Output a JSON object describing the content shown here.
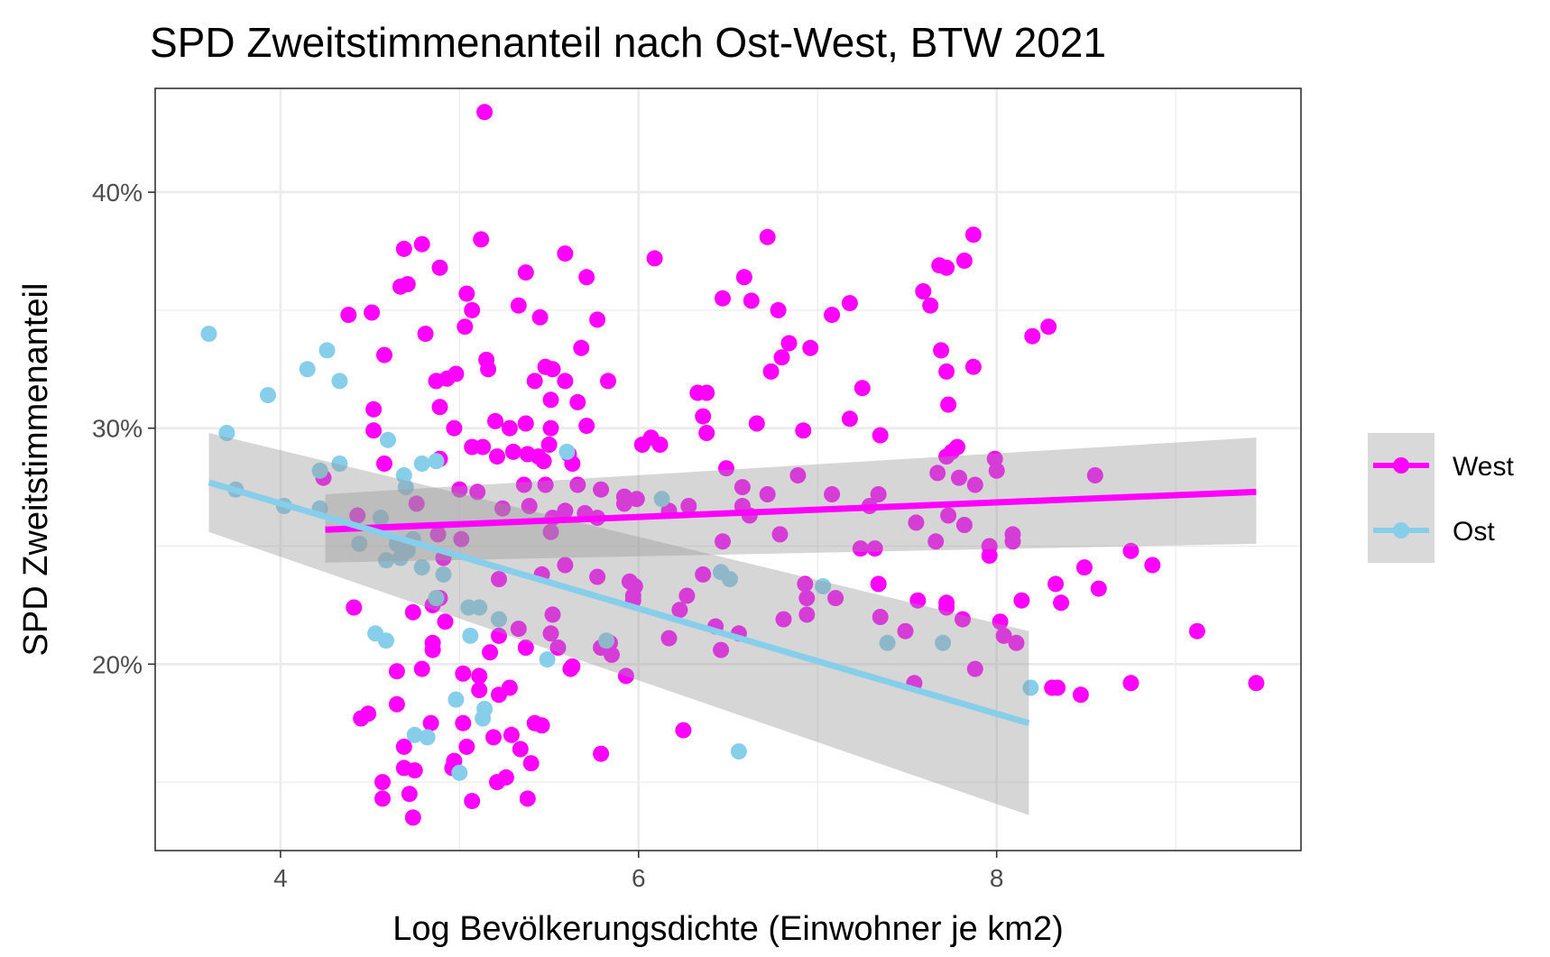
{
  "chart_data": {
    "type": "scatter",
    "title": "SPD Zweitstimmenanteil nach Ost-West, BTW 2021",
    "xlabel": "Log Bevölkerungsdichte (Einwohner je km2)",
    "ylabel": "SPD Zweitstimmenanteil",
    "xlim": [
      3.3,
      9.7
    ],
    "ylim": [
      0.121,
      0.444
    ],
    "x_ticks": [
      4,
      6,
      8
    ],
    "x_tick_labels": [
      "4",
      "6",
      "8"
    ],
    "y_ticks": [
      0.2,
      0.3,
      0.4
    ],
    "y_tick_labels": [
      "20%",
      "30%",
      "40%"
    ],
    "grid": true,
    "legend_position": "right",
    "series": [
      {
        "name": "West",
        "color": "#ff00ff",
        "trend": {
          "x": [
            4.25,
            9.45
          ],
          "y": [
            0.257,
            0.273
          ],
          "ci_low": [
            0.243,
            0.251
          ],
          "ci_high": [
            0.272,
            0.296
          ]
        },
        "points": [
          [
            5.14,
            0.434
          ],
          [
            4.69,
            0.376
          ],
          [
            4.79,
            0.378
          ],
          [
            5.12,
            0.38
          ],
          [
            5.59,
            0.374
          ],
          [
            6.09,
            0.372
          ],
          [
            6.72,
            0.381
          ],
          [
            7.87,
            0.382
          ],
          [
            4.67,
            0.36
          ],
          [
            4.71,
            0.361
          ],
          [
            4.89,
            0.368
          ],
          [
            5.37,
            0.366
          ],
          [
            5.71,
            0.364
          ],
          [
            6.59,
            0.364
          ],
          [
            7.68,
            0.369
          ],
          [
            7.72,
            0.368
          ],
          [
            7.82,
            0.371
          ],
          [
            4.38,
            0.348
          ],
          [
            4.51,
            0.349
          ],
          [
            5.04,
            0.357
          ],
          [
            5.07,
            0.35
          ],
          [
            5.33,
            0.352
          ],
          [
            5.45,
            0.347
          ],
          [
            5.77,
            0.346
          ],
          [
            6.47,
            0.355
          ],
          [
            6.63,
            0.354
          ],
          [
            6.78,
            0.35
          ],
          [
            7.08,
            0.348
          ],
          [
            7.18,
            0.353
          ],
          [
            7.59,
            0.358
          ],
          [
            7.63,
            0.352
          ],
          [
            4.58,
            0.331
          ],
          [
            4.81,
            0.34
          ],
          [
            5.03,
            0.343
          ],
          [
            5.15,
            0.329
          ],
          [
            5.16,
            0.325
          ],
          [
            5.48,
            0.326
          ],
          [
            5.52,
            0.325
          ],
          [
            5.68,
            0.334
          ],
          [
            6.74,
            0.324
          ],
          [
            6.8,
            0.33
          ],
          [
            6.84,
            0.336
          ],
          [
            6.96,
            0.334
          ],
          [
            7.69,
            0.333
          ],
          [
            7.72,
            0.324
          ],
          [
            7.87,
            0.326
          ],
          [
            8.2,
            0.339
          ],
          [
            8.29,
            0.343
          ],
          [
            4.52,
            0.308
          ],
          [
            4.87,
            0.32
          ],
          [
            4.93,
            0.321
          ],
          [
            4.98,
            0.323
          ],
          [
            5.42,
            0.32
          ],
          [
            5.51,
            0.312
          ],
          [
            5.59,
            0.32
          ],
          [
            5.66,
            0.311
          ],
          [
            5.83,
            0.32
          ],
          [
            6.33,
            0.315
          ],
          [
            6.38,
            0.315
          ],
          [
            7.25,
            0.317
          ],
          [
            7.73,
            0.31
          ],
          [
            4.52,
            0.299
          ],
          [
            4.89,
            0.309
          ],
          [
            4.97,
            0.3
          ],
          [
            5.2,
            0.303
          ],
          [
            5.28,
            0.3
          ],
          [
            5.37,
            0.302
          ],
          [
            5.51,
            0.3
          ],
          [
            5.71,
            0.301
          ],
          [
            6.02,
            0.293
          ],
          [
            6.07,
            0.296
          ],
          [
            6.12,
            0.293
          ],
          [
            6.36,
            0.305
          ],
          [
            6.38,
            0.298
          ],
          [
            6.66,
            0.302
          ],
          [
            6.92,
            0.299
          ],
          [
            7.18,
            0.304
          ],
          [
            7.35,
            0.297
          ],
          [
            7.75,
            0.29
          ],
          [
            7.78,
            0.292
          ],
          [
            4.58,
            0.285
          ],
          [
            4.89,
            0.287
          ],
          [
            5.07,
            0.292
          ],
          [
            5.13,
            0.292
          ],
          [
            5.21,
            0.288
          ],
          [
            5.3,
            0.29
          ],
          [
            5.38,
            0.289
          ],
          [
            5.44,
            0.288
          ],
          [
            5.47,
            0.286
          ],
          [
            5.5,
            0.293
          ],
          [
            5.61,
            0.289
          ],
          [
            5.63,
            0.285
          ],
          [
            6.49,
            0.283
          ],
          [
            6.89,
            0.28
          ],
          [
            7.67,
            0.281
          ],
          [
            7.72,
            0.288
          ],
          [
            7.79,
            0.279
          ],
          [
            7.88,
            0.276
          ],
          [
            7.99,
            0.287
          ],
          [
            8.0,
            0.282
          ],
          [
            8.55,
            0.28
          ],
          [
            4.24,
            0.279
          ],
          [
            4.76,
            0.268
          ],
          [
            5.0,
            0.274
          ],
          [
            5.1,
            0.273
          ],
          [
            5.36,
            0.276
          ],
          [
            5.48,
            0.276
          ],
          [
            5.66,
            0.276
          ],
          [
            5.79,
            0.274
          ],
          [
            5.92,
            0.271
          ],
          [
            5.99,
            0.27
          ],
          [
            6.58,
            0.275
          ],
          [
            6.72,
            0.272
          ],
          [
            7.08,
            0.272
          ],
          [
            7.34,
            0.272
          ],
          [
            5.24,
            0.266
          ],
          [
            5.39,
            0.267
          ],
          [
            5.52,
            0.262
          ],
          [
            5.59,
            0.265
          ],
          [
            5.7,
            0.264
          ],
          [
            5.77,
            0.262
          ],
          [
            5.92,
            0.268
          ],
          [
            6.17,
            0.265
          ],
          [
            6.28,
            0.267
          ],
          [
            6.58,
            0.267
          ],
          [
            6.62,
            0.263
          ],
          [
            7.29,
            0.267
          ],
          [
            7.55,
            0.26
          ],
          [
            7.66,
            0.252
          ],
          [
            7.73,
            0.263
          ],
          [
            7.82,
            0.259
          ],
          [
            8.09,
            0.255
          ],
          [
            8.09,
            0.252
          ],
          [
            4.43,
            0.263
          ],
          [
            4.88,
            0.255
          ],
          [
            5.01,
            0.253
          ],
          [
            5.51,
            0.256
          ],
          [
            6.47,
            0.252
          ],
          [
            6.79,
            0.255
          ],
          [
            7.96,
            0.25
          ],
          [
            7.96,
            0.246
          ],
          [
            8.75,
            0.248
          ],
          [
            8.87,
            0.242
          ],
          [
            4.91,
            0.245
          ],
          [
            5.22,
            0.236
          ],
          [
            5.46,
            0.238
          ],
          [
            5.59,
            0.242
          ],
          [
            5.77,
            0.237
          ],
          [
            5.95,
            0.235
          ],
          [
            5.98,
            0.233
          ],
          [
            6.36,
            0.238
          ],
          [
            6.93,
            0.234
          ],
          [
            7.24,
            0.249
          ],
          [
            7.32,
            0.249
          ],
          [
            7.34,
            0.234
          ],
          [
            8.33,
            0.234
          ],
          [
            8.49,
            0.241
          ],
          [
            8.57,
            0.232
          ],
          [
            4.41,
            0.224
          ],
          [
            4.74,
            0.222
          ],
          [
            4.85,
            0.225
          ],
          [
            4.89,
            0.228
          ],
          [
            5.52,
            0.221
          ],
          [
            5.97,
            0.229
          ],
          [
            5.97,
            0.227
          ],
          [
            6.23,
            0.223
          ],
          [
            6.27,
            0.229
          ],
          [
            6.94,
            0.228
          ],
          [
            7.1,
            0.228
          ],
          [
            7.56,
            0.227
          ],
          [
            7.72,
            0.226
          ],
          [
            7.72,
            0.224
          ],
          [
            8.02,
            0.218
          ],
          [
            8.14,
            0.227
          ],
          [
            8.36,
            0.226
          ],
          [
            4.85,
            0.209
          ],
          [
            4.85,
            0.206
          ],
          [
            4.92,
            0.218
          ],
          [
            5.22,
            0.212
          ],
          [
            5.33,
            0.215
          ],
          [
            5.37,
            0.207
          ],
          [
            5.51,
            0.213
          ],
          [
            5.55,
            0.207
          ],
          [
            5.63,
            0.199
          ],
          [
            5.79,
            0.207
          ],
          [
            5.84,
            0.209
          ],
          [
            5.85,
            0.204
          ],
          [
            6.17,
            0.211
          ],
          [
            6.43,
            0.216
          ],
          [
            6.46,
            0.206
          ],
          [
            6.56,
            0.213
          ],
          [
            6.81,
            0.219
          ],
          [
            6.94,
            0.221
          ],
          [
            7.35,
            0.22
          ],
          [
            7.49,
            0.214
          ],
          [
            7.81,
            0.219
          ],
          [
            8.04,
            0.212
          ],
          [
            8.11,
            0.209
          ],
          [
            9.12,
            0.214
          ],
          [
            4.65,
            0.197
          ],
          [
            4.79,
            0.198
          ],
          [
            5.02,
            0.196
          ],
          [
            5.11,
            0.195
          ],
          [
            5.17,
            0.205
          ],
          [
            5.62,
            0.198
          ],
          [
            5.93,
            0.195
          ],
          [
            7.54,
            0.192
          ],
          [
            7.88,
            0.198
          ],
          [
            8.31,
            0.19
          ],
          [
            8.34,
            0.19
          ],
          [
            8.47,
            0.187
          ],
          [
            8.75,
            0.192
          ],
          [
            9.45,
            0.192
          ],
          [
            4.49,
            0.179
          ],
          [
            4.65,
            0.183
          ],
          [
            4.84,
            0.175
          ],
          [
            5.02,
            0.175
          ],
          [
            5.11,
            0.189
          ],
          [
            5.22,
            0.187
          ],
          [
            5.28,
            0.19
          ],
          [
            5.42,
            0.175
          ],
          [
            5.46,
            0.174
          ],
          [
            4.45,
            0.177
          ],
          [
            4.69,
            0.165
          ],
          [
            4.97,
            0.159
          ],
          [
            5.04,
            0.165
          ],
          [
            5.19,
            0.169
          ],
          [
            5.29,
            0.17
          ],
          [
            5.34,
            0.164
          ],
          [
            5.4,
            0.158
          ],
          [
            5.79,
            0.162
          ],
          [
            6.25,
            0.172
          ],
          [
            4.57,
            0.15
          ],
          [
            4.69,
            0.156
          ],
          [
            4.75,
            0.155
          ],
          [
            4.96,
            0.156
          ],
          [
            5.21,
            0.15
          ],
          [
            5.26,
            0.152
          ],
          [
            4.57,
            0.143
          ],
          [
            4.72,
            0.145
          ],
          [
            4.74,
            0.135
          ],
          [
            5.07,
            0.142
          ],
          [
            5.38,
            0.143
          ]
        ]
      },
      {
        "name": "Ost",
        "color": "#87ceeb",
        "trend": {
          "x": [
            3.6,
            8.18
          ],
          "y": [
            0.277,
            0.175
          ],
          "ci_low": [
            0.256,
            0.136
          ],
          "ci_high": [
            0.298,
            0.214
          ]
        },
        "points": [
          [
            3.6,
            0.34
          ],
          [
            3.7,
            0.298
          ],
          [
            3.75,
            0.274
          ],
          [
            3.93,
            0.314
          ],
          [
            4.02,
            0.267
          ],
          [
            4.15,
            0.325
          ],
          [
            4.26,
            0.333
          ],
          [
            4.33,
            0.32
          ],
          [
            4.22,
            0.282
          ],
          [
            4.22,
            0.266
          ],
          [
            4.33,
            0.285
          ],
          [
            4.6,
            0.295
          ],
          [
            4.69,
            0.28
          ],
          [
            4.7,
            0.275
          ],
          [
            4.79,
            0.285
          ],
          [
            4.87,
            0.286
          ],
          [
            4.56,
            0.262
          ],
          [
            4.65,
            0.251
          ],
          [
            4.71,
            0.248
          ],
          [
            4.74,
            0.253
          ],
          [
            4.44,
            0.251
          ],
          [
            4.59,
            0.244
          ],
          [
            4.67,
            0.245
          ],
          [
            4.79,
            0.241
          ],
          [
            4.91,
            0.238
          ],
          [
            4.87,
            0.228
          ],
          [
            5.05,
            0.224
          ],
          [
            5.11,
            0.224
          ],
          [
            5.22,
            0.219
          ],
          [
            5.06,
            0.212
          ],
          [
            4.53,
            0.213
          ],
          [
            4.59,
            0.21
          ],
          [
            4.98,
            0.185
          ],
          [
            5.13,
            0.177
          ],
          [
            5.14,
            0.181
          ],
          [
            4.75,
            0.17
          ],
          [
            4.82,
            0.169
          ],
          [
            5.0,
            0.154
          ],
          [
            5.49,
            0.202
          ],
          [
            5.6,
            0.29
          ],
          [
            5.82,
            0.21
          ],
          [
            6.13,
            0.27
          ],
          [
            6.46,
            0.239
          ],
          [
            6.51,
            0.236
          ],
          [
            6.56,
            0.163
          ],
          [
            7.03,
            0.233
          ],
          [
            7.39,
            0.209
          ],
          [
            7.7,
            0.209
          ],
          [
            8.19,
            0.19
          ]
        ]
      }
    ]
  }
}
